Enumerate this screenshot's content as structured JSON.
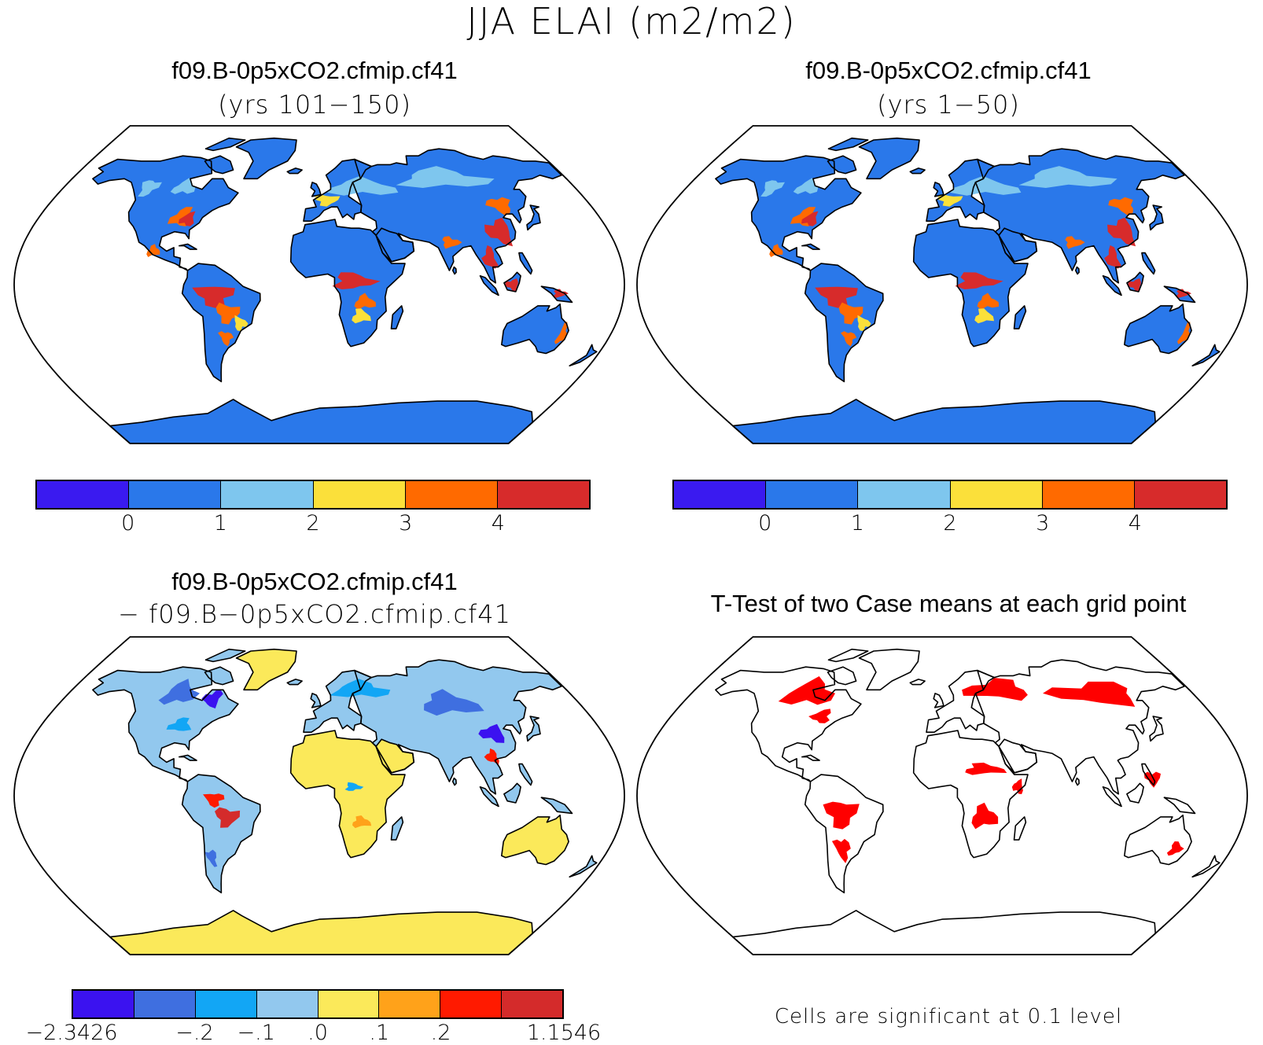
{
  "figure": {
    "title": "JJA ELAI (m2/m2)"
  },
  "panels": {
    "top_left": {
      "title": "f09.B-0p5xCO2.cfmip.cf41",
      "subtitle": "(yrs 101−150)"
    },
    "top_right": {
      "title": "f09.B-0p5xCO2.cfmip.cf41",
      "subtitle": "(yrs 1−50)"
    },
    "bottom_left": {
      "title": "f09.B-0p5xCO2.cfmip.cf41",
      "subtitle": "− f09.B−0p5xCO2.cfmip.cf41"
    },
    "bottom_right": {
      "title": "T-Test of two Case means at each grid point",
      "note": "Cells are significant at 0.1 level"
    }
  },
  "colorbars": {
    "absolute": {
      "colors": [
        "#3a1af0",
        "#2a78ea",
        "#7ec6ee",
        "#fbe03a",
        "#ff6a00",
        "#d72b2b"
      ],
      "labels": [
        "0",
        "1",
        "2",
        "3",
        "4"
      ]
    },
    "difference": {
      "colors": [
        "#3b12f0",
        "#3f6fe0",
        "#12a6f5",
        "#92c8ee",
        "#fbe95a",
        "#ffa21a",
        "#ff1a00",
        "#d42b2b"
      ],
      "labels": [
        "−2.3426",
        "−.2",
        "−.1",
        ".0",
        ".1",
        ".2",
        "1.1546"
      ]
    }
  },
  "colors": {
    "significant": "#ff0000",
    "ocean": "#ffffff",
    "coastline": "#000000"
  }
}
